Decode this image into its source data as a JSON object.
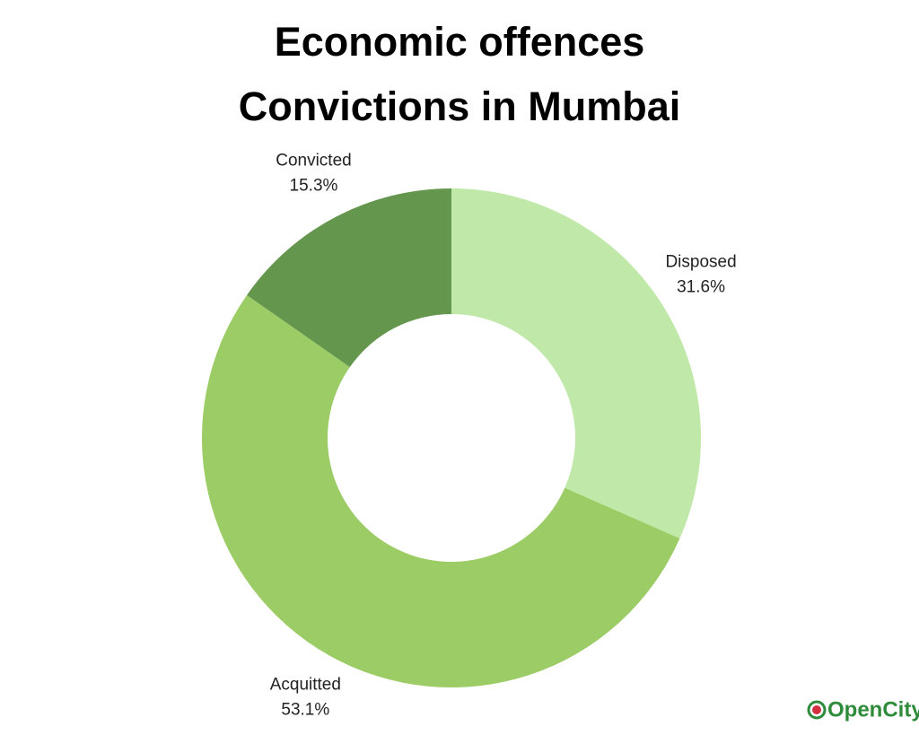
{
  "chart_data": {
    "type": "pie",
    "title": [
      "Economic offences",
      "Convictions in Mumbai"
    ],
    "categories": [
      "Disposed",
      "Acquitted",
      "Convicted"
    ],
    "values": [
      31.6,
      53.1,
      15.3
    ],
    "value_labels": [
      "31.6%",
      "53.1%",
      "15.3%"
    ],
    "colors": [
      "#c0e9a9",
      "#9ccc65",
      "#64964d"
    ]
  },
  "logo": "OpenCity"
}
